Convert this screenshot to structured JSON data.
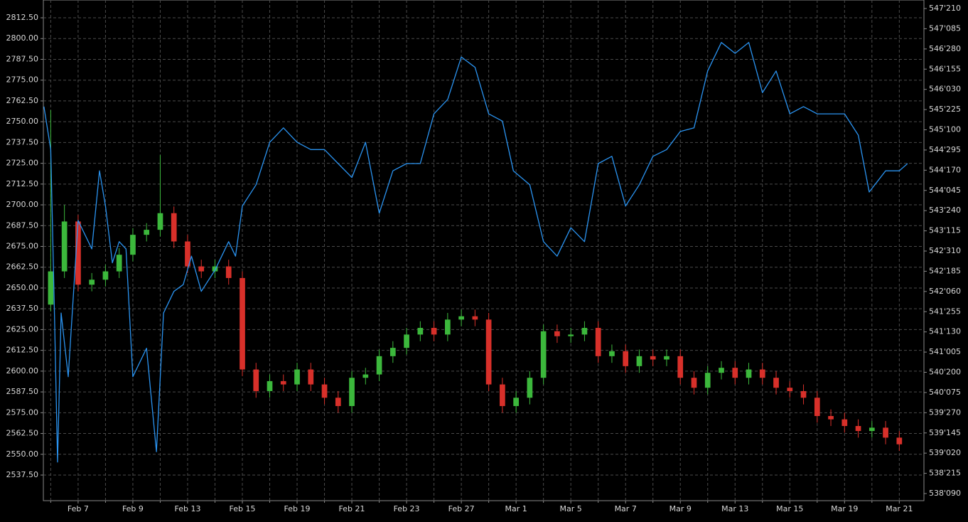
{
  "chart_data": {
    "type": "candlestick",
    "grid": true,
    "xlim": [
      -0.27,
      31.9
    ],
    "xticks": [
      {
        "value": 1,
        "label": "Feb 7"
      },
      {
        "value": 3,
        "label": "Feb 9"
      },
      {
        "value": 5,
        "label": "Feb 13"
      },
      {
        "value": 7,
        "label": "Feb 15"
      },
      {
        "value": 9,
        "label": "Feb 19"
      },
      {
        "value": 11,
        "label": "Feb 21"
      },
      {
        "value": 13,
        "label": "Feb 23"
      },
      {
        "value": 15,
        "label": "Feb 27"
      },
      {
        "value": 17,
        "label": "Mar 1"
      },
      {
        "value": 19,
        "label": "Mar 5"
      },
      {
        "value": 21,
        "label": "Mar 7"
      },
      {
        "value": 23,
        "label": "Mar 9"
      },
      {
        "value": 25,
        "label": "Mar 13"
      },
      {
        "value": 27,
        "label": "Mar 15"
      },
      {
        "value": 29,
        "label": "Mar 19"
      },
      {
        "value": 31,
        "label": "Mar 21"
      }
    ],
    "xminorticks": [
      0,
      2,
      4,
      6,
      8,
      10,
      12,
      14,
      16,
      18,
      20,
      22,
      24,
      26,
      28,
      30
    ],
    "ylim": [
      2522.1,
      2823.2
    ],
    "yticks": [
      {
        "value": 2537.5,
        "label": "2537.50"
      },
      {
        "value": 2550,
        "label": "2550.00"
      },
      {
        "value": 2562.5,
        "label": "2562.50"
      },
      {
        "value": 2575,
        "label": "2575.00"
      },
      {
        "value": 2587.5,
        "label": "2587.50"
      },
      {
        "value": 2600,
        "label": "2600.00"
      },
      {
        "value": 2612.5,
        "label": "2612.50"
      },
      {
        "value": 2625,
        "label": "2625.00"
      },
      {
        "value": 2637.5,
        "label": "2637.50"
      },
      {
        "value": 2650,
        "label": "2650.00"
      },
      {
        "value": 2662.5,
        "label": "2662.50"
      },
      {
        "value": 2675,
        "label": "2675.00"
      },
      {
        "value": 2687.5,
        "label": "2687.50"
      },
      {
        "value": 2700,
        "label": "2700.00"
      },
      {
        "value": 2712.5,
        "label": "2712.50"
      },
      {
        "value": 2725,
        "label": "2725.00"
      },
      {
        "value": 2737.5,
        "label": "2737.50"
      },
      {
        "value": 2750,
        "label": "2750.00"
      },
      {
        "value": 2762.5,
        "label": "2762.50"
      },
      {
        "value": 2775,
        "label": "2775.00"
      },
      {
        "value": 2787.5,
        "label": "2787.50"
      },
      {
        "value": 2800,
        "label": "2800.00"
      },
      {
        "value": 2812.5,
        "label": "2812.50"
      }
    ],
    "y2lim": [
      538.144,
      547.8212
    ],
    "y2ticks": [
      {
        "value": 538.28125,
        "label": "538'090"
      },
      {
        "value": 538.671875,
        "label": "538'215"
      },
      {
        "value": 539.0625,
        "label": "539'020"
      },
      {
        "value": 539.453125,
        "label": "539'145"
      },
      {
        "value": 539.84375,
        "label": "539'270"
      },
      {
        "value": 540.234375,
        "label": "540'075"
      },
      {
        "value": 540.625,
        "label": "540'200"
      },
      {
        "value": 541.015625,
        "label": "541'005"
      },
      {
        "value": 541.40625,
        "label": "541'130"
      },
      {
        "value": 541.796875,
        "label": "541'255"
      },
      {
        "value": 542.1875,
        "label": "542'060"
      },
      {
        "value": 542.578125,
        "label": "542'185"
      },
      {
        "value": 542.96875,
        "label": "542'310"
      },
      {
        "value": 543.359375,
        "label": "543'115"
      },
      {
        "value": 543.75,
        "label": "543'240"
      },
      {
        "value": 544.140625,
        "label": "544'045"
      },
      {
        "value": 544.53125,
        "label": "544'170"
      },
      {
        "value": 544.921875,
        "label": "544'295"
      },
      {
        "value": 545.3125,
        "label": "545'100"
      },
      {
        "value": 545.703125,
        "label": "545'225"
      },
      {
        "value": 546.09375,
        "label": "546'030"
      },
      {
        "value": 546.484375,
        "label": "546'155"
      },
      {
        "value": 546.875,
        "label": "546'280"
      },
      {
        "value": 547.265625,
        "label": "547'085"
      },
      {
        "value": 547.65625,
        "label": "547'210"
      }
    ],
    "candles": {
      "up_color": "#3cb83c",
      "down_color": "#d8302a",
      "x": [
        0,
        0.5,
        1,
        1.5,
        2,
        2.5,
        3,
        3.5,
        4,
        4.5,
        5,
        5.5,
        6,
        6.5,
        7,
        7.5,
        8,
        8.5,
        9,
        9.5,
        10,
        10.5,
        11,
        11.5,
        12,
        12.5,
        13,
        13.5,
        14,
        14.5,
        15,
        15.5,
        16,
        16.5,
        17,
        17.5,
        18,
        18.5,
        19,
        19.5,
        20,
        20.5,
        21,
        21.5,
        22,
        22.5,
        23,
        23.5,
        24,
        24.5,
        25,
        25.5,
        26,
        26.5,
        27,
        27.5,
        28,
        28.5,
        29,
        29.5,
        30,
        30.5,
        31
      ],
      "open": [
        2640,
        2660,
        2690,
        2652,
        2655,
        2660,
        2670,
        2682,
        2685,
        2695,
        2678,
        2663,
        2660,
        2663,
        2656,
        2601,
        2588,
        2594,
        2592,
        2601,
        2592,
        2584,
        2579,
        2596,
        2598,
        2609,
        2614,
        2622,
        2626,
        2622,
        2631,
        2633,
        2631,
        2592,
        2579,
        2584,
        2596,
        2624,
        2621,
        2622,
        2626,
        2609,
        2612,
        2603,
        2609,
        2607,
        2609,
        2596,
        2590,
        2599,
        2602,
        2596,
        2601,
        2596,
        2590,
        2588,
        2584,
        2573,
        2571,
        2567,
        2564,
        2566,
        2560
      ],
      "high": [
        2757,
        2700,
        2694,
        2659,
        2664,
        2674,
        2686,
        2689,
        2730,
        2699,
        2682,
        2667,
        2667,
        2667,
        2660,
        2605,
        2598,
        2598,
        2605,
        2605,
        2596,
        2588,
        2600,
        2602,
        2613,
        2618,
        2626,
        2630,
        2630,
        2635,
        2637,
        2637,
        2635,
        2596,
        2588,
        2600,
        2628,
        2628,
        2626,
        2630,
        2630,
        2616,
        2616,
        2613,
        2613,
        2613,
        2613,
        2600,
        2603,
        2606,
        2606,
        2605,
        2605,
        2600,
        2594,
        2592,
        2588,
        2577,
        2575,
        2571,
        2570,
        2570,
        2564
      ],
      "low": [
        2636,
        2656,
        2648,
        2648,
        2651,
        2656,
        2666,
        2678,
        2681,
        2674,
        2659,
        2656,
        2656,
        2652,
        2597,
        2584,
        2584,
        2588,
        2588,
        2588,
        2580,
        2575,
        2575,
        2592,
        2594,
        2605,
        2610,
        2618,
        2618,
        2618,
        2627,
        2627,
        2588,
        2575,
        2575,
        2580,
        2592,
        2617,
        2617,
        2618,
        2605,
        2605,
        2599,
        2599,
        2603,
        2603,
        2592,
        2586,
        2586,
        2595,
        2592,
        2592,
        2592,
        2586,
        2584,
        2580,
        2569,
        2567,
        2563,
        2560,
        2560,
        2556,
        2552
      ],
      "close": [
        2660,
        2690,
        2652,
        2655,
        2660,
        2670,
        2682,
        2685,
        2695,
        2678,
        2663,
        2660,
        2663,
        2656,
        2601,
        2588,
        2594,
        2592,
        2601,
        2592,
        2584,
        2579,
        2596,
        2598,
        2609,
        2614,
        2622,
        2626,
        2622,
        2631,
        2633,
        2631,
        2592,
        2579,
        2584,
        2596,
        2624,
        2621,
        2622,
        2626,
        2609,
        2612,
        2603,
        2609,
        2607,
        2609,
        2596,
        2590,
        2599,
        2602,
        2596,
        2601,
        2596,
        2590,
        2588,
        2584,
        2573,
        2571,
        2567,
        2564,
        2566,
        2560,
        2556
      ]
    },
    "series": [
      {
        "color": "#2a93f0",
        "axis": "y2",
        "x": [
          -0.25,
          0,
          0.14,
          0.25,
          0.38,
          0.64,
          1,
          1.5,
          1.78,
          2,
          2.25,
          2.5,
          2.75,
          3,
          3.5,
          3.86,
          4.12,
          4.5,
          4.84,
          5.14,
          5.5,
          6,
          6.5,
          6.75,
          7,
          7.5,
          8,
          8.5,
          9,
          9.5,
          10,
          10.5,
          11,
          11.5,
          12,
          12.5,
          13,
          13.5,
          14,
          14.5,
          15,
          15.5,
          16,
          16.5,
          16.9,
          17.5,
          18,
          18.5,
          19,
          19.5,
          20,
          20.5,
          21,
          21.5,
          22,
          22.5,
          23,
          23.5,
          24,
          24.5,
          25,
          25.5,
          26,
          26.5,
          27,
          27.5,
          28,
          28.5,
          29,
          29.5,
          29.9,
          30.5,
          31,
          31.3
        ],
        "values": [
          545.76,
          544.93,
          541.64,
          538.89,
          541.77,
          540.54,
          543.56,
          543.01,
          544.52,
          543.84,
          542.74,
          543.15,
          543.01,
          540.54,
          541.09,
          539.09,
          541.77,
          542.19,
          542.32,
          542.87,
          542.19,
          542.6,
          543.15,
          542.87,
          543.84,
          544.25,
          545.07,
          545.35,
          545.07,
          544.93,
          544.93,
          544.66,
          544.39,
          545.07,
          543.7,
          544.52,
          544.66,
          544.66,
          545.62,
          545.9,
          546.72,
          546.52,
          545.62,
          545.48,
          544.52,
          544.25,
          543.15,
          542.87,
          543.42,
          543.15,
          544.66,
          544.8,
          543.84,
          544.25,
          544.8,
          544.93,
          545.28,
          545.35,
          546.45,
          547.0,
          546.79,
          547.0,
          546.03,
          546.45,
          545.62,
          545.76,
          545.62,
          545.62,
          545.62,
          545.21,
          544.11,
          544.52,
          544.52,
          544.66
        ]
      }
    ]
  }
}
